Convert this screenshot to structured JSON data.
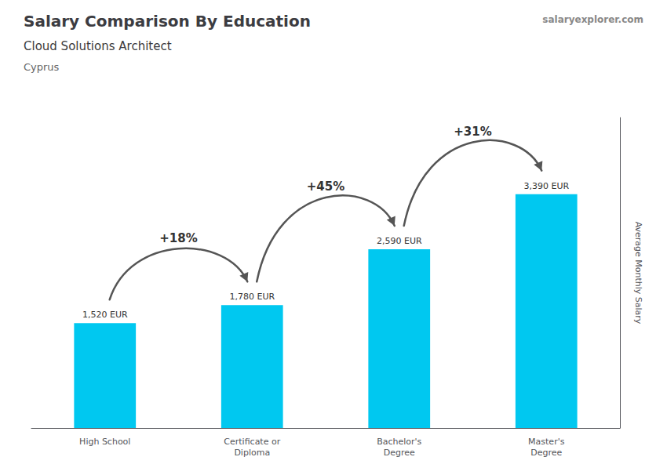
{
  "chart_data": {
    "type": "bar",
    "title": "Salary Comparison By Education",
    "subtitle": "Cloud Solutions Architect",
    "country": "Cyprus",
    "credit": "salaryexplorer.com",
    "ylabel": "Average Monthly Salary",
    "categories": [
      "High School",
      "Certificate or\nDiploma",
      "Bachelor's\nDegree",
      "Master's\nDegree"
    ],
    "values": [
      1520,
      1780,
      2590,
      3390
    ],
    "value_labels": [
      "1,520 EUR",
      "1,780 EUR",
      "2,590 EUR",
      "3,390 EUR"
    ],
    "data_labels": true,
    "annotations": [
      "+18%",
      "+45%",
      "+31%"
    ],
    "color": "#00c8f0",
    "ylim": [
      0,
      4500
    ],
    "tick_labels": "x",
    "grid": false
  }
}
